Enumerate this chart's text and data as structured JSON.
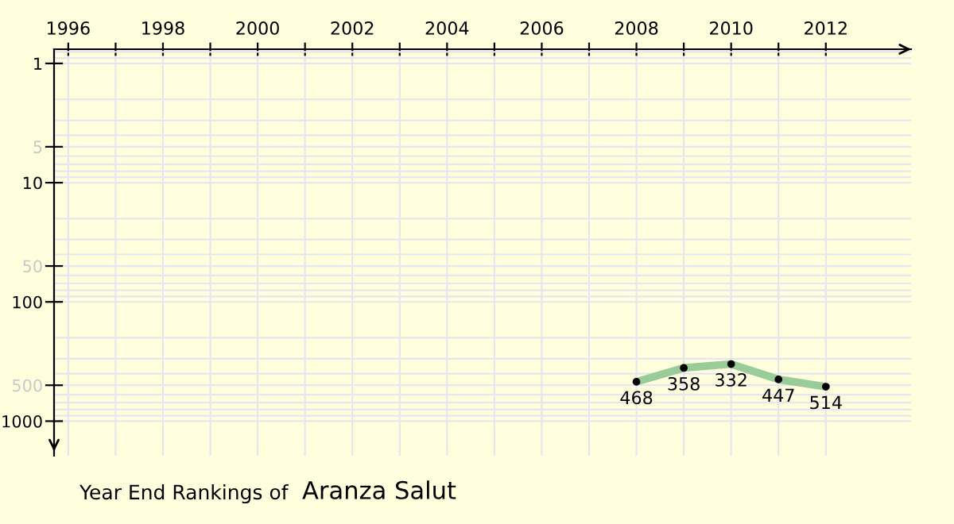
{
  "chart_data": {
    "type": "line",
    "title": "Year End Rankings of",
    "subtitle": "Aranza Salut",
    "x": [
      2008,
      2009,
      2010,
      2011,
      2012
    ],
    "series": [
      {
        "color": "#99cc99",
        "values": [
          468,
          358,
          332,
          447,
          514
        ]
      }
    ],
    "data_labels": true,
    "marker": "circle",
    "line_style": "solid",
    "log": "y",
    "grid": true,
    "xlim": [
      1995.7,
      2013.8
    ],
    "xticks": [
      1996,
      {
        "value": 1997,
        "label": null
      },
      1998,
      {
        "value": 1999,
        "label": null
      },
      2000,
      {
        "value": 2001,
        "label": null
      },
      2002,
      {
        "value": 2003,
        "label": null
      },
      2004,
      {
        "value": 2005,
        "label": null
      },
      2006,
      {
        "value": 2007,
        "label": null
      },
      2008,
      {
        "value": 2009,
        "label": null
      },
      2010,
      {
        "value": 2011,
        "label": null
      },
      2012
    ],
    "ylim": [
      1950,
      0.76
    ],
    "yticks": [
      1,
      5,
      10,
      50,
      100,
      500,
      1000
    ]
  }
}
